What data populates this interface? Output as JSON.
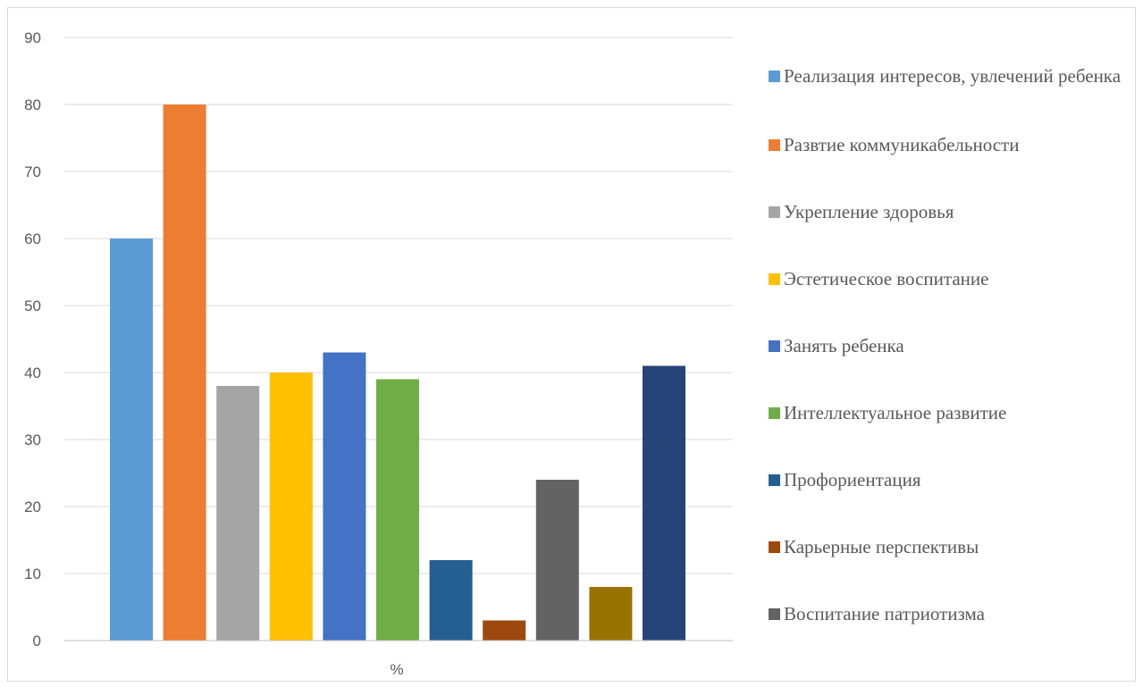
{
  "chart_data": {
    "type": "bar",
    "categories": [
      "%"
    ],
    "ylim": [
      0,
      90
    ],
    "yticks": [
      0,
      10,
      20,
      30,
      40,
      50,
      60,
      70,
      80,
      90
    ],
    "grid": true,
    "legend_position": "right",
    "series": [
      {
        "name": "Реализация интересов, увлечений ребенка",
        "values": [
          60
        ],
        "color": "#5b9bd5"
      },
      {
        "name": "Развтие коммуникабельности",
        "values": [
          80
        ],
        "color": "#ed7d31"
      },
      {
        "name": "Укрепление здоровья",
        "values": [
          38
        ],
        "color": "#a5a5a5"
      },
      {
        "name": "Эстетическое воспитание",
        "values": [
          40
        ],
        "color": "#ffc000"
      },
      {
        "name": "Занять ребенка",
        "values": [
          43
        ],
        "color": "#4472c4"
      },
      {
        "name": "Интеллектуальное развитие",
        "values": [
          39
        ],
        "color": "#70ad47"
      },
      {
        "name": "Профориентация",
        "values": [
          12
        ],
        "color": "#255e91"
      },
      {
        "name": "Карьерные перспективы",
        "values": [
          3
        ],
        "color": "#9e480e"
      },
      {
        "name": "Воспитание патриотизма",
        "values": [
          24
        ],
        "color": "#636363"
      },
      {
        "name": "",
        "values": [
          8
        ],
        "color": "#997300"
      },
      {
        "name": "",
        "values": [
          41
        ],
        "color": "#264478"
      }
    ]
  }
}
